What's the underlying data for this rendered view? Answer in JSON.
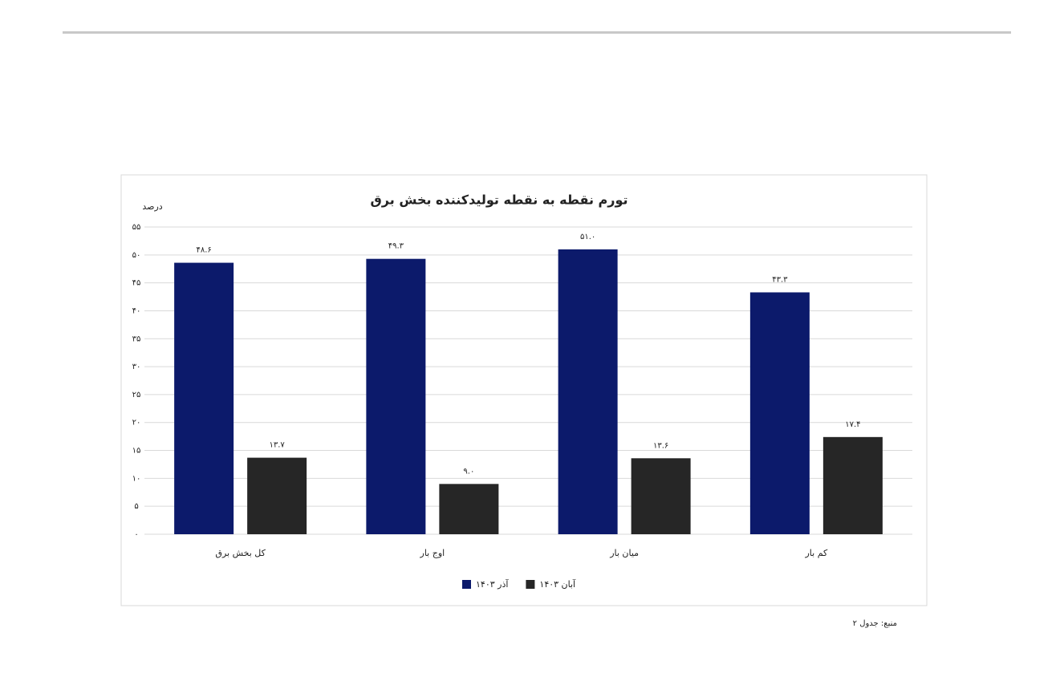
{
  "chart_data": {
    "type": "bar",
    "title": "تورم نقطه به نقطه تولیدکننده بخش برق",
    "y_label": "درصد",
    "source": "منبع: جدول ۲",
    "categories": [
      "کل بخش برق",
      "اوج بار",
      "میان بار",
      "کم بار"
    ],
    "series": [
      {
        "name": "آذر ۱۴۰۳",
        "color": "#0c1a6b",
        "values": [
          48.6,
          49.3,
          51.0,
          43.3
        ],
        "value_labels": [
          "۴۸.۶",
          "۴۹.۳",
          "۵۱.۰",
          "۴۳.۳"
        ]
      },
      {
        "name": "آبان ۱۴۰۳",
        "color": "#262626",
        "values": [
          13.7,
          9.0,
          13.6,
          17.4
        ],
        "value_labels": [
          "۱۳.۷",
          "۹.۰",
          "۱۳.۶",
          "۱۷.۴"
        ]
      }
    ],
    "ylim": [
      0,
      55
    ],
    "yticks": [
      {
        "value": 0,
        "label": "۰"
      },
      {
        "value": 5,
        "label": "۵"
      },
      {
        "value": 10,
        "label": "۱۰"
      },
      {
        "value": 15,
        "label": "۱۵"
      },
      {
        "value": 20,
        "label": "۲۰"
      },
      {
        "value": 25,
        "label": "۲۵"
      },
      {
        "value": 30,
        "label": "۳۰"
      },
      {
        "value": 35,
        "label": "۳۵"
      },
      {
        "value": 40,
        "label": "۴۰"
      },
      {
        "value": 45,
        "label": "۴۵"
      },
      {
        "value": 50,
        "label": "۵۰"
      },
      {
        "value": 55,
        "label": "۵۵"
      }
    ],
    "grid": true
  }
}
